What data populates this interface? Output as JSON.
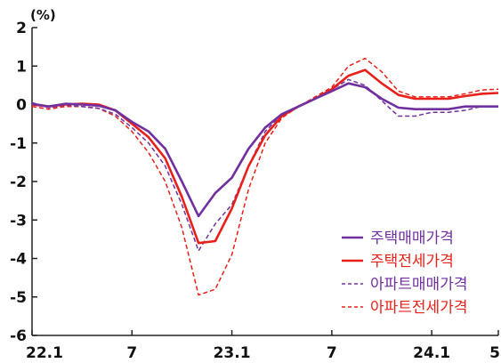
{
  "chart_data": {
    "type": "line",
    "unit_label": "(%)",
    "title": "",
    "xlabel": "",
    "ylabel": "",
    "ylim": [
      -6,
      2
    ],
    "y_ticks": [
      "2",
      "1",
      "0",
      "-1",
      "-2",
      "-3",
      "-4",
      "-5",
      "-6"
    ],
    "x_ticks": [
      "22.1",
      "7",
      "23.1",
      "7",
      "24.1",
      "5"
    ],
    "x": [
      "22.1",
      "22.2",
      "22.3",
      "22.4",
      "22.5",
      "22.6",
      "22.7",
      "22.8",
      "22.9",
      "22.10",
      "22.11",
      "22.12",
      "23.1",
      "23.2",
      "23.3",
      "23.4",
      "23.5",
      "23.6",
      "23.7",
      "23.8",
      "23.9",
      "23.10",
      "23.11",
      "23.12",
      "24.1",
      "24.2",
      "24.3",
      "24.4",
      "24.5"
    ],
    "grid": false,
    "legend_position": "bottom-right",
    "series": [
      {
        "name": "주택매매가격",
        "color": "#7030a0",
        "style": "solid",
        "values": [
          0.02,
          -0.05,
          0.02,
          0.0,
          -0.03,
          -0.15,
          -0.45,
          -0.7,
          -1.15,
          -2.0,
          -2.9,
          -2.3,
          -1.9,
          -1.15,
          -0.6,
          -0.25,
          -0.05,
          0.15,
          0.35,
          0.55,
          0.45,
          0.15,
          -0.08,
          -0.12,
          -0.12,
          -0.12,
          -0.05,
          -0.05,
          -0.05
        ]
      },
      {
        "name": "주택전세가격",
        "color": "#e8201a",
        "style": "solid",
        "values": [
          0.0,
          -0.05,
          0.0,
          0.02,
          0.0,
          -0.15,
          -0.5,
          -0.85,
          -1.4,
          -2.4,
          -3.6,
          -3.55,
          -2.7,
          -1.6,
          -0.8,
          -0.3,
          -0.05,
          0.15,
          0.4,
          0.75,
          0.9,
          0.55,
          0.25,
          0.15,
          0.15,
          0.15,
          0.22,
          0.28,
          0.3
        ]
      },
      {
        "name": "아파트매매가격",
        "color": "#7030a0",
        "style": "dashed",
        "values": [
          0.05,
          -0.08,
          -0.02,
          -0.05,
          -0.1,
          -0.25,
          -0.6,
          -1.0,
          -1.6,
          -2.6,
          -3.8,
          -3.1,
          -2.6,
          -1.6,
          -0.7,
          -0.25,
          -0.05,
          0.15,
          0.4,
          0.65,
          0.5,
          0.1,
          -0.3,
          -0.3,
          -0.2,
          -0.2,
          -0.15,
          -0.05,
          -0.05
        ]
      },
      {
        "name": "아파트전세가격",
        "color": "#e8201a",
        "style": "dashed",
        "values": [
          -0.05,
          -0.12,
          -0.05,
          -0.05,
          -0.1,
          -0.3,
          -0.7,
          -1.25,
          -2.0,
          -3.2,
          -4.95,
          -4.8,
          -3.9,
          -2.2,
          -1.0,
          -0.35,
          -0.05,
          0.2,
          0.45,
          1.0,
          1.2,
          0.85,
          0.35,
          0.2,
          0.2,
          0.2,
          0.28,
          0.38,
          0.4
        ]
      }
    ]
  }
}
